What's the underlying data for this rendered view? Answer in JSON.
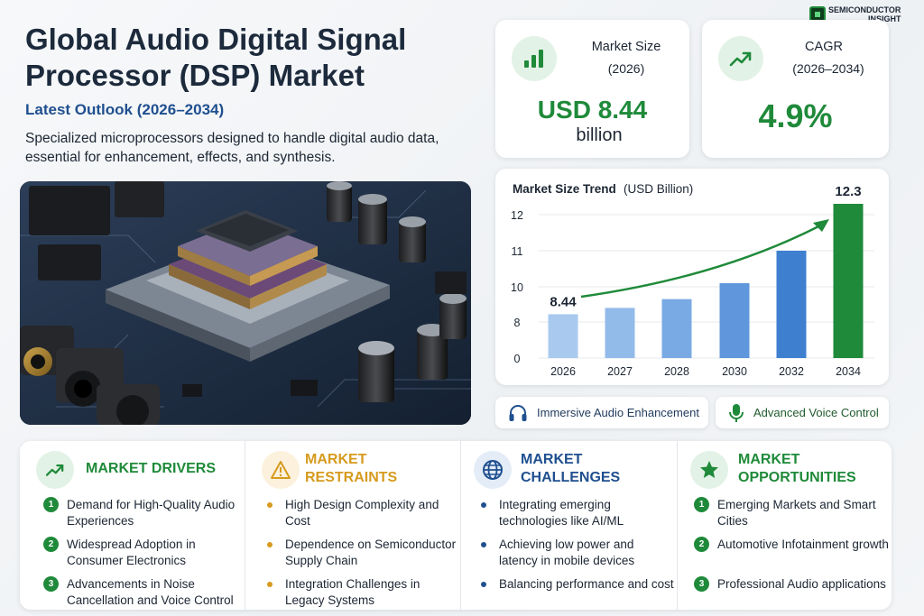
{
  "brand": {
    "line1": "SEMICONDUCTOR",
    "line2": "INSIGHT"
  },
  "header": {
    "title": "Global Audio Digital Signal Processor (DSP) Market",
    "subtitle": "Latest Outlook (2026–2034)",
    "description": "Specialized microprocessors designed to handle digital audio data, essential for enhancement, effects, and synthesis."
  },
  "stats": {
    "market_size": {
      "label": "Market Size",
      "sub": "(2026)",
      "value": "USD 8.44",
      "unit": "billion",
      "icon": "bar-chart-icon"
    },
    "cagr": {
      "label": "CAGR",
      "sub": "(2026–2034)",
      "value": "4.9%",
      "icon": "trend-up-icon"
    }
  },
  "chart": {
    "title": "Market Size Trend",
    "unit": "(USD Billion)"
  },
  "chart_data": {
    "type": "bar",
    "title": "Market Size Trend (USD Billion)",
    "categories": [
      "2026",
      "2027",
      "2028",
      "2030",
      "2032",
      "2034"
    ],
    "values": [
      8.44,
      8.8,
      9.3,
      10.1,
      11.0,
      12.3
    ],
    "value_labels": [
      "8.44",
      "",
      "",
      "",
      "",
      "12.3"
    ],
    "y_ticks": [
      0,
      8,
      10,
      11,
      12
    ],
    "ylim": [
      0,
      12.6
    ],
    "colors": [
      "#a9c9ef",
      "#93bbea",
      "#7aaae4",
      "#5f96dc",
      "#3f7fd0",
      "#1f8a3a"
    ],
    "grid": true,
    "trend_arrow": true
  },
  "features": [
    {
      "label": "Immersive Audio Enhancement",
      "icon": "headphones-icon"
    },
    {
      "label": "Advanced Voice Control",
      "icon": "microphone-icon"
    }
  ],
  "columns": [
    {
      "heading": [
        "MARKET DRIVERS"
      ],
      "icon": "trend-up-icon",
      "color": "#1f8a3a",
      "bg": "#e3f2e6",
      "marker": "number",
      "items": [
        "Demand for High-Quality Audio Experiences",
        "Widespread Adoption in Consumer Electronics",
        "Advancements in Noise Cancellation and Voice Control"
      ]
    },
    {
      "heading": [
        "MARKET",
        "RESTRAINTS"
      ],
      "icon": "warning-icon",
      "color": "#d69a1e",
      "bg": "#fcf1dc",
      "marker": "dot",
      "items": [
        "High Design Complexity and Cost",
        "Dependence on Semiconductor Supply Chain",
        "Integration Challenges in Legacy Systems"
      ]
    },
    {
      "heading": [
        "MARKET",
        "CHALLENGES"
      ],
      "icon": "globe-icon",
      "color": "#1f4f8f",
      "bg": "#e3ecf7",
      "marker": "dot",
      "items": [
        "Integrating emerging technologies like AI/ML",
        "Achieving low power and latency in mobile devices",
        "Balancing performance and cost"
      ]
    },
    {
      "heading": [
        "MARKET",
        "OPPORTUNITIES"
      ],
      "icon": "star-icon",
      "color": "#1f8a3a",
      "bg": "#e3f2e6",
      "marker": "number",
      "items": [
        "Emerging Markets and Smart Cities",
        "Automotive Infotainment growth",
        "Professional Audio applications"
      ]
    }
  ]
}
